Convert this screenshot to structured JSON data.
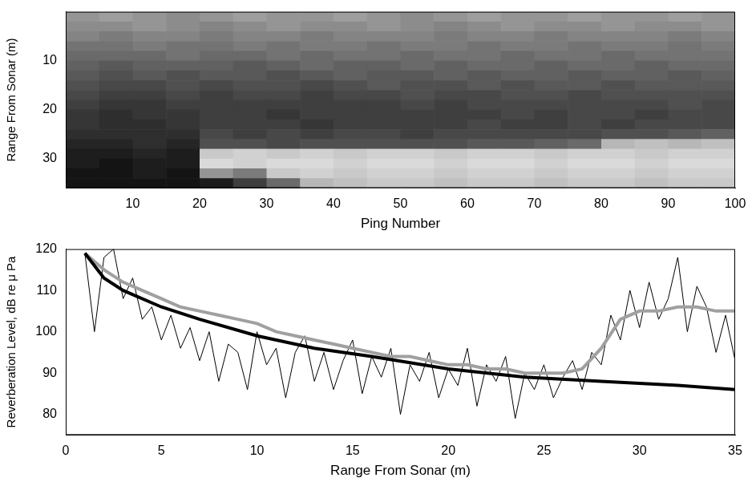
{
  "chart_data": [
    {
      "type": "heatmap",
      "x_label": "Ping Number",
      "y_label": "Range From Sonar (m)",
      "xlim": [
        0,
        100
      ],
      "xticks": [
        10,
        20,
        30,
        40,
        50,
        60,
        70,
        80,
        90,
        100
      ],
      "ylim": [
        36,
        0
      ],
      "yticks": [
        10,
        20,
        30
      ],
      "grid": false,
      "x": [
        2.5,
        7.5,
        12.5,
        17.5,
        22.5,
        27.5,
        32.5,
        37.5,
        42.5,
        47.5,
        52.5,
        57.5,
        62.5,
        67.5,
        72.5,
        77.5,
        82.5,
        87.5,
        92.5,
        97.5
      ],
      "y": [
        1,
        3,
        5,
        7,
        9,
        11,
        13,
        15,
        17,
        19,
        21,
        23,
        25,
        27,
        29,
        31,
        33,
        35
      ],
      "color_range": [
        85,
        110
      ],
      "cells": [
        [
          100,
          101,
          100,
          99,
          100,
          101,
          100,
          100,
          101,
          100,
          99,
          100,
          101,
          100,
          100,
          101,
          100,
          100,
          101,
          100
        ],
        [
          99,
          99,
          100,
          99,
          98,
          99,
          100,
          99,
          99,
          100,
          99,
          98,
          99,
          100,
          99,
          99,
          100,
          99,
          99,
          100
        ],
        [
          98,
          97,
          98,
          98,
          97,
          98,
          98,
          97,
          98,
          98,
          98,
          97,
          98,
          98,
          97,
          98,
          98,
          98,
          97,
          98
        ],
        [
          96,
          96,
          97,
          96,
          96,
          97,
          96,
          97,
          97,
          96,
          97,
          97,
          96,
          97,
          97,
          96,
          97,
          97,
          96,
          97
        ],
        [
          95,
          95,
          95,
          96,
          95,
          95,
          96,
          95,
          96,
          96,
          95,
          96,
          96,
          95,
          96,
          96,
          95,
          96,
          96,
          96
        ],
        [
          94,
          93,
          94,
          94,
          94,
          93,
          94,
          95,
          94,
          94,
          95,
          94,
          95,
          95,
          94,
          95,
          95,
          94,
          95,
          95
        ],
        [
          93,
          92,
          93,
          92,
          93,
          93,
          92,
          93,
          94,
          93,
          93,
          94,
          93,
          94,
          94,
          93,
          94,
          94,
          93,
          94
        ],
        [
          92,
          91,
          91,
          92,
          91,
          92,
          92,
          91,
          92,
          93,
          92,
          92,
          93,
          92,
          93,
          93,
          92,
          93,
          93,
          93
        ],
        [
          91,
          90,
          90,
          91,
          90,
          91,
          91,
          90,
          91,
          91,
          92,
          91,
          91,
          92,
          92,
          91,
          92,
          92,
          92,
          92
        ],
        [
          90,
          89,
          89,
          90,
          90,
          90,
          90,
          90,
          90,
          90,
          91,
          90,
          91,
          91,
          91,
          91,
          91,
          91,
          92,
          91
        ],
        [
          89,
          88,
          89,
          89,
          90,
          90,
          89,
          90,
          90,
          90,
          90,
          90,
          90,
          91,
          90,
          91,
          91,
          90,
          91,
          91
        ],
        [
          89,
          88,
          88,
          89,
          90,
          90,
          90,
          89,
          90,
          90,
          90,
          90,
          91,
          90,
          90,
          91,
          90,
          91,
          91,
          91
        ],
        [
          88,
          88,
          88,
          88,
          91,
          90,
          91,
          90,
          91,
          91,
          90,
          91,
          91,
          91,
          91,
          91,
          92,
          92,
          93,
          94
        ],
        [
          87,
          87,
          88,
          87,
          92,
          92,
          91,
          92,
          92,
          92,
          92,
          92,
          93,
          93,
          94,
          95,
          104,
          105,
          104,
          105
        ],
        [
          86,
          86,
          87,
          86,
          106,
          107,
          106,
          107,
          106,
          107,
          107,
          106,
          107,
          107,
          106,
          107,
          107,
          106,
          107,
          107
        ],
        [
          86,
          85,
          86,
          86,
          108,
          107,
          108,
          108,
          107,
          108,
          108,
          107,
          108,
          108,
          107,
          108,
          108,
          107,
          108,
          108
        ],
        [
          85,
          85,
          86,
          85,
          100,
          97,
          106,
          107,
          106,
          107,
          107,
          106,
          107,
          107,
          106,
          107,
          107,
          106,
          107,
          107
        ],
        [
          85,
          85,
          85,
          85,
          86,
          90,
          95,
          104,
          105,
          106,
          106,
          105,
          106,
          106,
          105,
          106,
          106,
          105,
          106,
          106
        ]
      ]
    },
    {
      "type": "line",
      "x_label": "Range From Sonar (m)",
      "y_label": "Reverberation Level, dB re μ Pa",
      "xlim": [
        0,
        35
      ],
      "xticks": [
        0,
        5,
        10,
        15,
        20,
        25,
        30,
        35
      ],
      "ylim": [
        75,
        120
      ],
      "yticks": [
        80,
        90,
        100,
        110,
        120
      ],
      "grid": false,
      "series": [
        {
          "color": "#000000",
          "line_style": "thin",
          "x": [
            1,
            1.5,
            2,
            2.5,
            3,
            3.5,
            4,
            4.5,
            5,
            5.5,
            6,
            6.5,
            7,
            7.5,
            8,
            8.5,
            9,
            9.5,
            10,
            10.5,
            11,
            11.5,
            12,
            12.5,
            13,
            13.5,
            14,
            14.5,
            15,
            15.5,
            16,
            16.5,
            17,
            17.5,
            18,
            18.5,
            19,
            19.5,
            20,
            20.5,
            21,
            21.5,
            22,
            22.5,
            23,
            23.5,
            24,
            24.5,
            25,
            25.5,
            26,
            26.5,
            27,
            27.5,
            28,
            28.5,
            29,
            29.5,
            30,
            30.5,
            31,
            31.5,
            32,
            32.5,
            33,
            33.5,
            34,
            34.5,
            35
          ],
          "values": [
            119,
            100,
            118,
            120,
            108,
            113,
            103,
            106,
            98,
            104,
            96,
            101,
            93,
            100,
            88,
            97,
            95,
            86,
            100,
            92,
            96,
            84,
            95,
            99,
            88,
            95,
            86,
            93,
            98,
            85,
            94,
            89,
            96,
            80,
            92,
            88,
            95,
            84,
            91,
            87,
            96,
            82,
            92,
            88,
            94,
            79,
            90,
            86,
            92,
            84,
            89,
            93,
            86,
            95,
            92,
            104,
            98,
            110,
            101,
            112,
            103,
            108,
            118,
            100,
            111,
            106,
            95,
            104,
            93
          ]
        },
        {
          "color": "#a0a0a0",
          "line_style": "thick",
          "x": [
            1,
            2,
            3,
            4,
            5,
            6,
            7,
            8,
            9,
            10,
            11,
            12,
            13,
            14,
            15,
            16,
            17,
            18,
            19,
            20,
            21,
            22,
            23,
            24,
            25,
            26,
            27,
            28,
            29,
            30,
            31,
            32,
            33,
            34,
            35
          ],
          "values": [
            119,
            115,
            112,
            110,
            108,
            106,
            105,
            104,
            103,
            102,
            100,
            99,
            98,
            97,
            96,
            95,
            94,
            94,
            93,
            92,
            92,
            91,
            91,
            90,
            90,
            90,
            91,
            96,
            103,
            105,
            105,
            106,
            106,
            105,
            105
          ]
        },
        {
          "color": "#000000",
          "line_style": "thick",
          "x": [
            1,
            2,
            3,
            5,
            7,
            10,
            13,
            16,
            20,
            24,
            28,
            32,
            35
          ],
          "values": [
            119,
            113,
            110,
            106,
            103,
            99,
            96,
            94,
            91,
            89,
            88,
            87,
            86
          ]
        }
      ]
    }
  ]
}
